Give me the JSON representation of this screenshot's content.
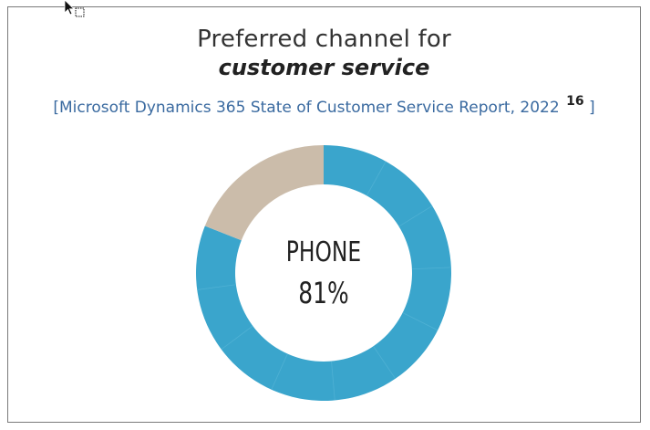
{
  "title": {
    "line1": "Preferred channel for",
    "line2": "customer service"
  },
  "source": {
    "text": "[Microsoft Dynamics 365 State of Customer Service Report, 2022",
    "footnote": "16",
    "close": "]"
  },
  "chart_data": {
    "type": "pie",
    "variant": "donut",
    "title": "Preferred channel for customer service",
    "center_label": "PHONE",
    "center_value": "81%",
    "slices": [
      {
        "label": "PHONE",
        "value": 81,
        "color": "#3aa5cc"
      },
      {
        "label": "",
        "value": 19,
        "color": "#cbbcaa"
      }
    ],
    "legend": "none"
  },
  "cursor": {
    "icon": "mouse-pointer-icon"
  }
}
